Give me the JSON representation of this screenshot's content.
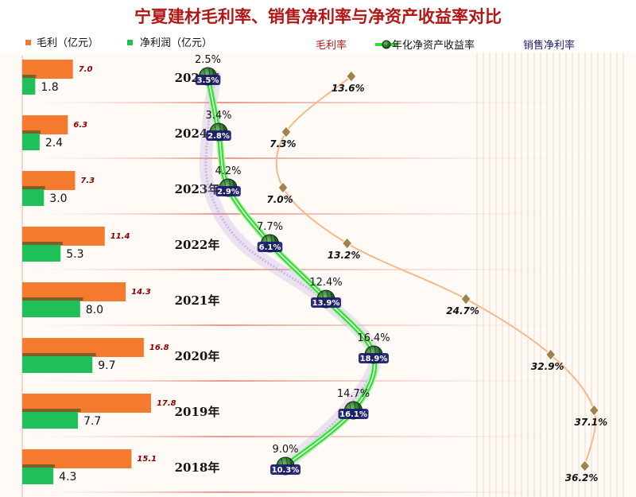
{
  "chart_data": {
    "type": "bar",
    "title": "宁夏建材毛利率、销售净利率与净资产收益率对比",
    "categories": [
      "2025年",
      "2024年",
      "2023年",
      "2022年",
      "2021年",
      "2020年",
      "2019年",
      "2018年"
    ],
    "bar_series": [
      {
        "name": "毛利（亿元）",
        "values": [
          7.0,
          6.3,
          7.3,
          11.4,
          14.3,
          16.8,
          17.8,
          15.1
        ],
        "color": "#f47a2e",
        "labels": [
          "7.0",
          "6.3",
          "7.3",
          "11.4",
          "14.3",
          "16.8",
          "17.8",
          "15.1"
        ]
      },
      {
        "name": "净利润（亿元）",
        "values": [
          1.8,
          2.4,
          3.0,
          5.3,
          8.0,
          9.7,
          7.7,
          4.3
        ],
        "color": "#1fbf5a",
        "labels": [
          "1.8",
          "2.4",
          "3.0",
          "5.3",
          "8.0",
          "9.7",
          "7.7",
          "4.3"
        ]
      }
    ],
    "line_series": [
      {
        "name": "毛利率",
        "values": [
          13.6,
          7.3,
          7.0,
          13.2,
          24.7,
          32.9,
          37.1,
          36.2
        ],
        "labels": [
          "13.6%",
          "7.3%",
          "7.0%",
          "13.2%",
          "24.7%",
          "32.9%",
          "37.1%",
          "36.2%"
        ],
        "color": "#f5b98a",
        "marker": "diamond"
      },
      {
        "name": "年化净资产收益率",
        "values": [
          2.5,
          3.4,
          4.2,
          7.7,
          12.4,
          16.4,
          14.7,
          9.0
        ],
        "labels": [
          "2.5%",
          "3.4%",
          "4.2%",
          "7.7%",
          "12.4%",
          "16.4%",
          "14.7%",
          "9.0%"
        ],
        "color": "#33dd33",
        "marker": "circle"
      },
      {
        "name": "销售净利率",
        "values": [
          3.5,
          2.8,
          2.9,
          6.1,
          13.9,
          18.9,
          16.1,
          10.3
        ],
        "labels": [
          "3.5%",
          "2.8%",
          "2.9%",
          "6.1%",
          "13.9%",
          "18.9%",
          "16.1%",
          "10.3%"
        ],
        "color": "#b39ddb",
        "marker": "none"
      }
    ],
    "legend": {
      "position": "top",
      "entries": [
        "毛利（亿元）",
        "净利润（亿元）",
        "毛利率",
        "年化净资产收益率",
        "销售净利率"
      ]
    },
    "colors": {
      "title": "#b01818",
      "gross_legend": "#b01818",
      "roe_ball": "#2e6b2e",
      "nm_legend": "#1a1a6e",
      "gross_label": "#8b0000",
      "bar_shadow": "#6b5a2a",
      "grid": "#f0d8c4"
    }
  }
}
